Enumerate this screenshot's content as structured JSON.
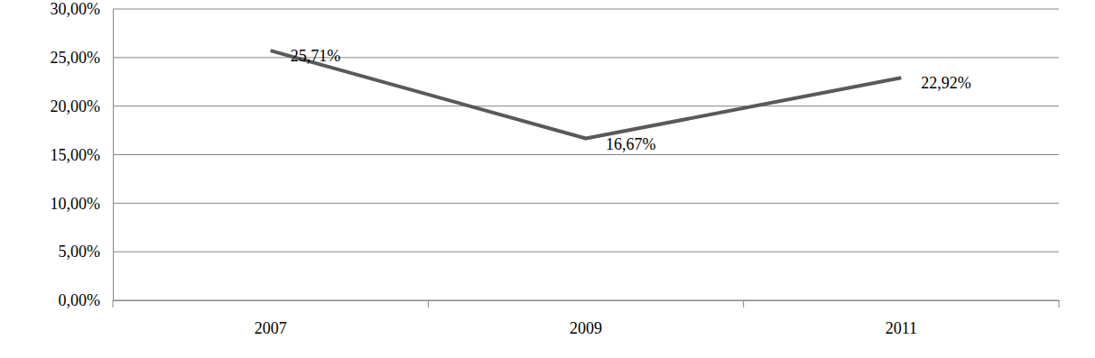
{
  "chart_data": {
    "type": "line",
    "categories": [
      "2007",
      "2009",
      "2011"
    ],
    "values": [
      25.71,
      16.67,
      22.92
    ],
    "value_labels": [
      "25,71%",
      "16,67%",
      "22,92%"
    ],
    "color": "#595959",
    "ylim": [
      0,
      30
    ],
    "yticks": [
      {
        "value": 0,
        "label": "0,00%"
      },
      {
        "value": 5,
        "label": "5,00%"
      },
      {
        "value": 10,
        "label": "10,00%"
      },
      {
        "value": 15,
        "label": "15,00%"
      },
      {
        "value": 20,
        "label": "20,00%"
      },
      {
        "value": 25,
        "label": "25,00%"
      },
      {
        "value": 30,
        "label": "30,00%"
      }
    ],
    "grid": true,
    "data_labels": true
  }
}
